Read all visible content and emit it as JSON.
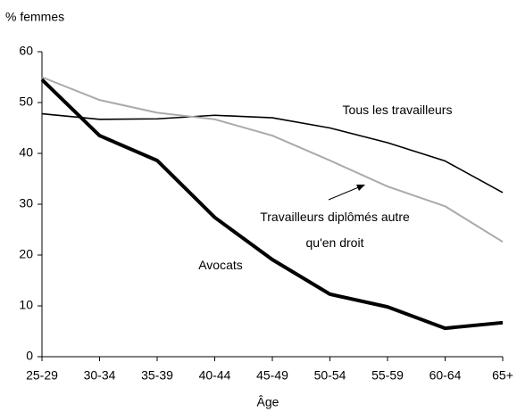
{
  "chart_data": {
    "type": "line",
    "y_label": "% femmes",
    "x_label": "Âge",
    "categories": [
      "25-29",
      "30-34",
      "35-39",
      "40-44",
      "45-49",
      "50-54",
      "55-59",
      "60-64",
      "65+"
    ],
    "series": [
      {
        "name": "Tous les travailleurs",
        "color": "#000000",
        "values": [
          47.8,
          46.7,
          46.8,
          47.5,
          47.0,
          45.0,
          42.1,
          38.5,
          32.3
        ]
      },
      {
        "name": "Travailleurs diplômés autre qu'en droit",
        "color": "#aaaaaa",
        "values": [
          55.0,
          50.5,
          48.0,
          46.7,
          43.5,
          38.6,
          33.5,
          29.6,
          22.6
        ]
      },
      {
        "name": "Avocats",
        "color": "#000000",
        "values": [
          54.5,
          43.5,
          38.6,
          27.4,
          19.1,
          12.3,
          9.8,
          5.6,
          6.7
        ]
      }
    ],
    "ylim": [
      0,
      60
    ],
    "yticks": [
      0,
      10,
      20,
      30,
      40,
      50,
      60
    ],
    "grid": false
  }
}
